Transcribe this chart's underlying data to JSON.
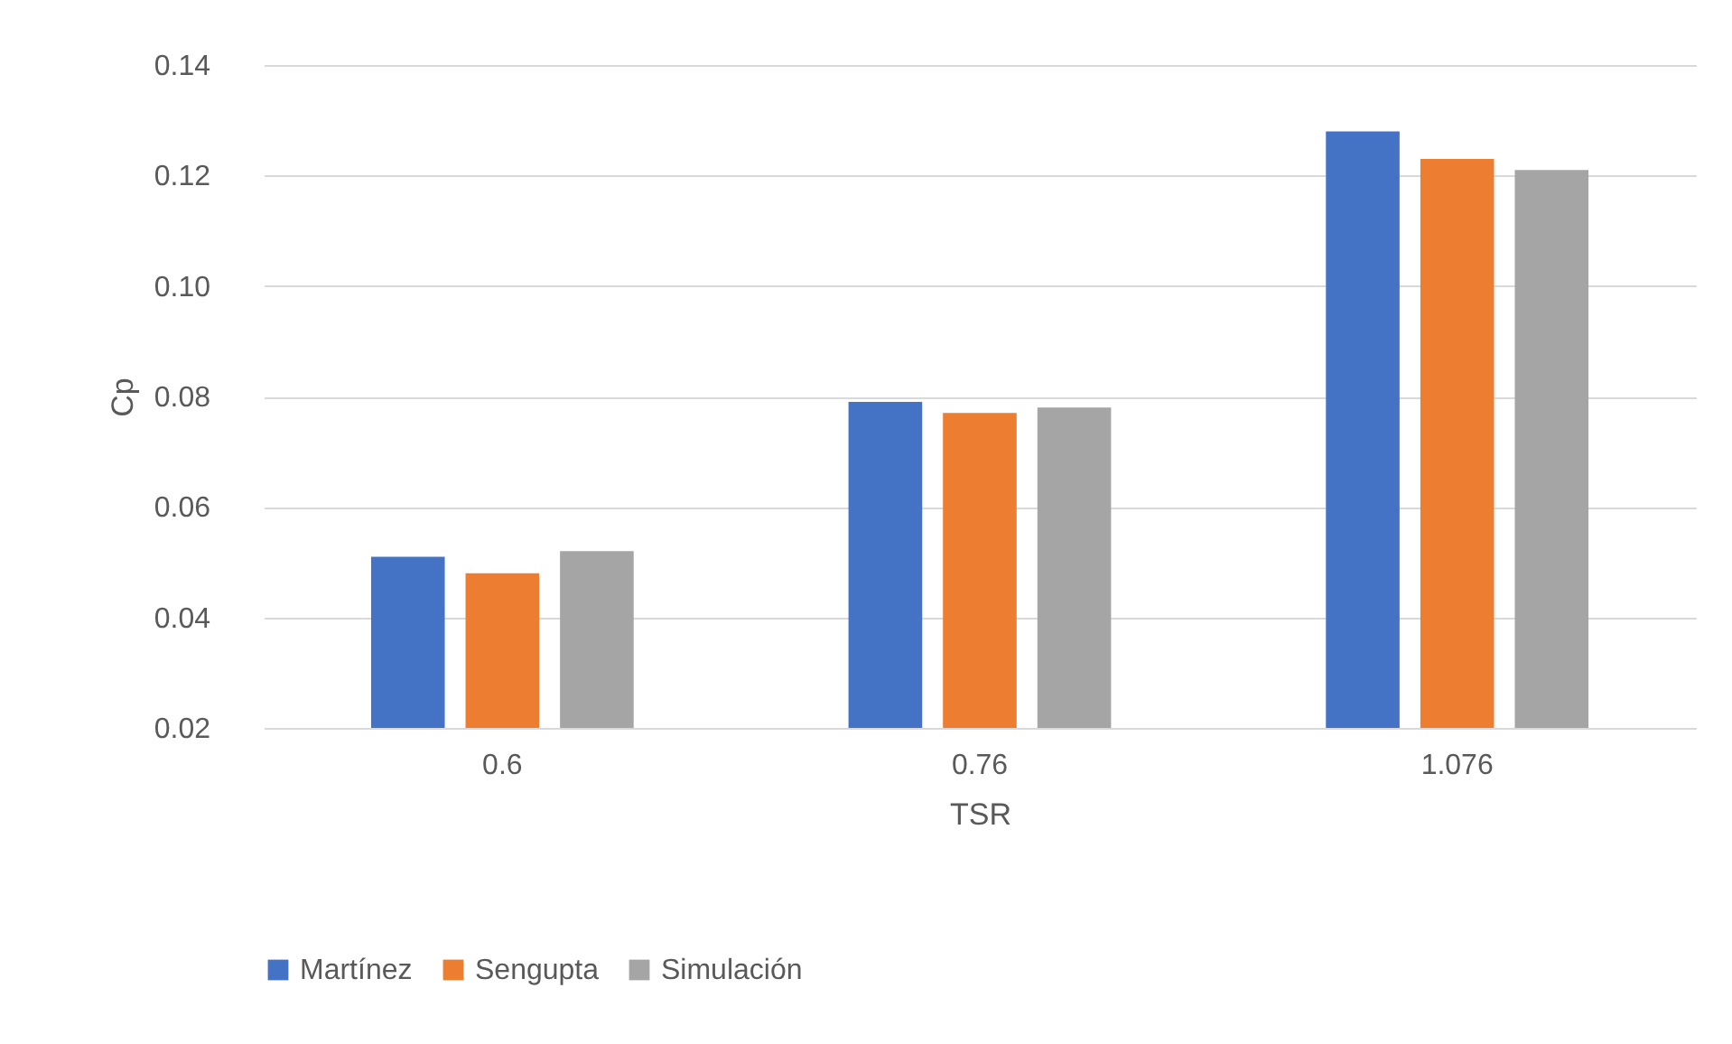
{
  "chart_data": {
    "type": "bar",
    "xlabel": "TSR",
    "ylabel": "Cp",
    "categories": [
      "0.6",
      "0.76",
      "1.076"
    ],
    "series": [
      {
        "name": "Martínez",
        "color": "#4472c4",
        "values": [
          0.051,
          0.079,
          0.128
        ]
      },
      {
        "name": "Sengupta",
        "color": "#ed7d31",
        "values": [
          0.048,
          0.077,
          0.123
        ]
      },
      {
        "name": "Simulación",
        "color": "#a5a5a5",
        "values": [
          0.052,
          0.078,
          0.121
        ]
      }
    ],
    "ylim": [
      0.02,
      0.14
    ],
    "yticks": [
      {
        "value": 0.02,
        "label": "0.02"
      },
      {
        "value": 0.04,
        "label": "0.04"
      },
      {
        "value": 0.06,
        "label": "0.06"
      },
      {
        "value": 0.08,
        "label": "0.08"
      },
      {
        "value": 0.1,
        "label": "0.10"
      },
      {
        "value": 0.12,
        "label": "0.12"
      },
      {
        "value": 0.14,
        "label": "0.14"
      }
    ],
    "grid": "y",
    "legend": "bottom"
  }
}
